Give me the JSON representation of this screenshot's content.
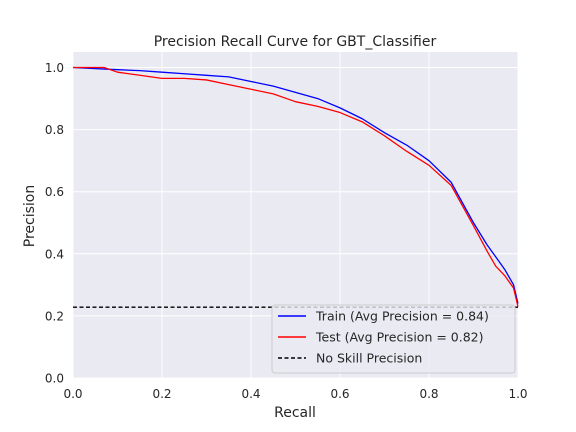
{
  "chart_data": {
    "type": "line",
    "title": "Precision Recall Curve for GBT_Classifier",
    "xlabel": "Recall",
    "ylabel": "Precision",
    "xlim": [
      0.0,
      1.0
    ],
    "ylim": [
      0.0,
      1.05
    ],
    "xticks": [
      "0.0",
      "0.2",
      "0.4",
      "0.6",
      "0.8",
      "1.0"
    ],
    "yticks": [
      "0.0",
      "0.2",
      "0.4",
      "0.6",
      "0.8",
      "1.0"
    ],
    "grid": true,
    "legend_position": "bottom-right",
    "series": [
      {
        "name": "Train (Avg Precision = 0.84)",
        "color": "#0000ff",
        "x": [
          0.0,
          0.1,
          0.15,
          0.2,
          0.25,
          0.3,
          0.35,
          0.4,
          0.45,
          0.5,
          0.55,
          0.6,
          0.65,
          0.7,
          0.75,
          0.8,
          0.85,
          0.9,
          0.93,
          0.95,
          0.97,
          0.99,
          1.0
        ],
        "y": [
          1.0,
          0.993,
          0.99,
          0.985,
          0.98,
          0.975,
          0.97,
          0.955,
          0.94,
          0.92,
          0.9,
          0.87,
          0.835,
          0.79,
          0.75,
          0.7,
          0.63,
          0.5,
          0.43,
          0.39,
          0.35,
          0.3,
          0.24
        ]
      },
      {
        "name": "Test (Avg Precision = 0.82)",
        "color": "#ff0000",
        "x": [
          0.0,
          0.07,
          0.1,
          0.15,
          0.2,
          0.25,
          0.3,
          0.35,
          0.4,
          0.45,
          0.5,
          0.55,
          0.6,
          0.65,
          0.7,
          0.75,
          0.8,
          0.85,
          0.9,
          0.93,
          0.95,
          0.97,
          0.99,
          1.0
        ],
        "y": [
          1.0,
          1.0,
          0.985,
          0.975,
          0.965,
          0.965,
          0.96,
          0.945,
          0.93,
          0.915,
          0.89,
          0.875,
          0.855,
          0.825,
          0.78,
          0.73,
          0.685,
          0.62,
          0.49,
          0.41,
          0.36,
          0.33,
          0.29,
          0.23
        ]
      },
      {
        "name": "No Skill Precision",
        "color": "#000000",
        "dashed": true,
        "x": [
          0.0,
          1.0
        ],
        "y": [
          0.228,
          0.228
        ]
      }
    ]
  }
}
